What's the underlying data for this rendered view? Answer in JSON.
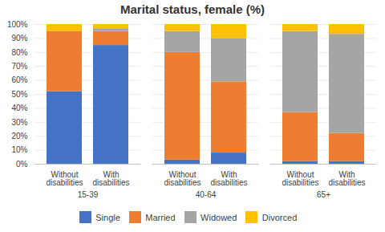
{
  "chart_data": {
    "type": "bar",
    "title": "Marital status, female (%)",
    "stacked": true,
    "categories": [
      "Without\ndisabilities",
      "With\ndisabilities",
      "Without\ndisabilities",
      "With\ndisabilities",
      "Without\ndisabilities",
      "With\ndisabilities"
    ],
    "groups": [
      "15-39",
      "15-39",
      "40-64",
      "40-64",
      "65+",
      "65+"
    ],
    "series": [
      {
        "name": "Single",
        "color": "#4472c4",
        "values": [
          52,
          85,
          3,
          8,
          2,
          2
        ]
      },
      {
        "name": "Married",
        "color": "#ed7d31",
        "values": [
          43,
          10,
          77,
          51,
          35,
          20
        ]
      },
      {
        "name": "Widowed",
        "color": "#a5a5a5",
        "values": [
          0,
          2,
          15,
          31,
          58,
          71
        ]
      },
      {
        "name": "Divorced",
        "color": "#ffc000",
        "values": [
          5,
          3,
          5,
          10,
          5,
          7
        ]
      }
    ],
    "ylim": [
      0,
      100
    ],
    "yticks": [
      {
        "value": 0,
        "label": "0%"
      },
      {
        "value": 10,
        "label": "10%"
      },
      {
        "value": 20,
        "label": "20%"
      },
      {
        "value": 30,
        "label": "30%"
      },
      {
        "value": 40,
        "label": "40%"
      },
      {
        "value": 50,
        "label": "50%"
      },
      {
        "value": 60,
        "label": "60%"
      },
      {
        "value": 70,
        "label": "70%"
      },
      {
        "value": 80,
        "label": "80%"
      },
      {
        "value": 90,
        "label": "90%"
      },
      {
        "value": 100,
        "label": "100%"
      }
    ],
    "grid": true,
    "legend": "bottom"
  }
}
